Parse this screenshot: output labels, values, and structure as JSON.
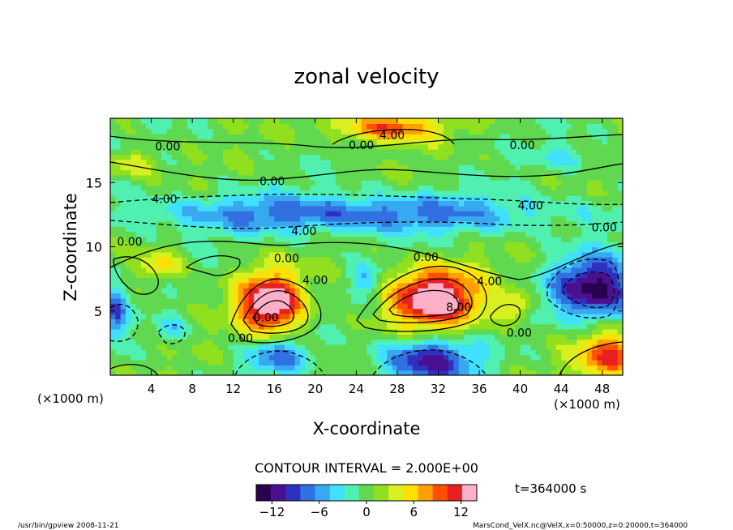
{
  "chart_data": {
    "type": "heatmap",
    "title": "zonal velocity",
    "xlabel": "X-coordinate",
    "ylabel": "Z-coordinate",
    "x_unit_note": "(×1000 m)",
    "y_unit_note": "(×1000 m)",
    "xlim": [
      0,
      50
    ],
    "ylim": [
      0,
      20
    ],
    "x_ticks": [
      4,
      8,
      12,
      16,
      20,
      24,
      28,
      32,
      36,
      40,
      44,
      48
    ],
    "y_ticks": [
      5,
      10,
      15
    ],
    "colorbar": {
      "range": [
        -14,
        14
      ],
      "ticks": [
        -12,
        -6,
        0,
        6,
        12
      ],
      "colors": [
        "#2a0050",
        "#4a1090",
        "#3030c0",
        "#3070e0",
        "#38a8f0",
        "#40e0ff",
        "#50f0b0",
        "#60d850",
        "#90e020",
        "#d8f020",
        "#ffe000",
        "#ffa000",
        "#ff5000",
        "#e82020",
        "#ffb0c8"
      ]
    },
    "contour_interval": "CONTOUR INTERVAL = 2.000E+00",
    "contour_labels": [
      {
        "text": "0.00",
        "x": 5.6,
        "z": 17.5
      },
      {
        "text": "0.00",
        "x": 24.5,
        "z": 17.6
      },
      {
        "text": "4.00",
        "x": 27.5,
        "z": 18.4
      },
      {
        "text": "0.00",
        "x": 40.2,
        "z": 17.6
      },
      {
        "text": "0.00",
        "x": 15.8,
        "z": 14.8
      },
      {
        "text": "4.00",
        "x": 5.3,
        "z": 13.4
      },
      {
        "text": "4.00",
        "x": 41.0,
        "z": 12.9
      },
      {
        "text": "0.00",
        "x": 48.2,
        "z": 11.2
      },
      {
        "text": "4.00",
        "x": 18.9,
        "z": 10.9
      },
      {
        "text": "0.00",
        "x": 1.9,
        "z": 10.1
      },
      {
        "text": "0.00",
        "x": 17.2,
        "z": 8.8
      },
      {
        "text": "0.00",
        "x": 30.8,
        "z": 8.9
      },
      {
        "text": "4.00",
        "x": 20.0,
        "z": 7.1
      },
      {
        "text": "4.00",
        "x": 37.0,
        "z": 7.0
      },
      {
        "text": "8.00",
        "x": 34.0,
        "z": 5.0
      },
      {
        "text": "0.00",
        "x": 15.2,
        "z": 4.2
      },
      {
        "text": "0.00",
        "x": 12.7,
        "z": 2.6
      },
      {
        "text": "0.00",
        "x": 39.9,
        "z": 3.0
      }
    ],
    "features": [
      {
        "x": 15.6,
        "z": 5.6,
        "amp": 15.0,
        "rx": 3.2,
        "rz": 2.4
      },
      {
        "x": 31.6,
        "z": 6.0,
        "amp": 15.0,
        "rx": 4.5,
        "rz": 2.4
      },
      {
        "x": 48.8,
        "z": 1.5,
        "amp": 10.0,
        "rx": 3.5,
        "rz": 1.9
      },
      {
        "x": 47.3,
        "z": 6.8,
        "amp": -13.0,
        "rx": 4.0,
        "rz": 2.4
      },
      {
        "x": 31.0,
        "z": 1.2,
        "amp": -11.0,
        "rx": 4.5,
        "rz": 1.8
      },
      {
        "x": 16.2,
        "z": 1.5,
        "amp": -7.0,
        "rx": 3.0,
        "rz": 1.5
      },
      {
        "x": 23.0,
        "z": 12.6,
        "amp": -8.0,
        "rx": 20.0,
        "rz": 1.5
      },
      {
        "x": 27.0,
        "z": 19.3,
        "amp": 10.0,
        "rx": 5.0,
        "rz": 1.1
      },
      {
        "x": 0.5,
        "z": 5.0,
        "amp": -8.0,
        "rx": 1.0,
        "rz": 2.0
      },
      {
        "x": 5.0,
        "z": 8.5,
        "amp": 6.0,
        "rx": 2.0,
        "rz": 1.2
      },
      {
        "x": 39.5,
        "z": 5.3,
        "amp": 6.0,
        "rx": 1.5,
        "rz": 1.2
      },
      {
        "x": 2.0,
        "z": 16.5,
        "amp": 5.0,
        "rx": 2.5,
        "rz": 1.0
      },
      {
        "x": 6.0,
        "z": 3.5,
        "amp": -4.0,
        "rx": 1.5,
        "rz": 1.0
      },
      {
        "x": 25.0,
        "z": 7.5,
        "amp": -5.0,
        "rx": 1.5,
        "rz": 1.2
      },
      {
        "x": 44.5,
        "z": 17.0,
        "amp": -3.0,
        "rx": 3.0,
        "rz": 1.0
      }
    ]
  },
  "labels": {
    "time": "t=364000 s",
    "footer_left": "/usr/bin/gpview  2008-11-21",
    "footer_right": "MarsCond_VelX.nc@VelX,x=0:50000,z=0:20000,t=364000"
  }
}
